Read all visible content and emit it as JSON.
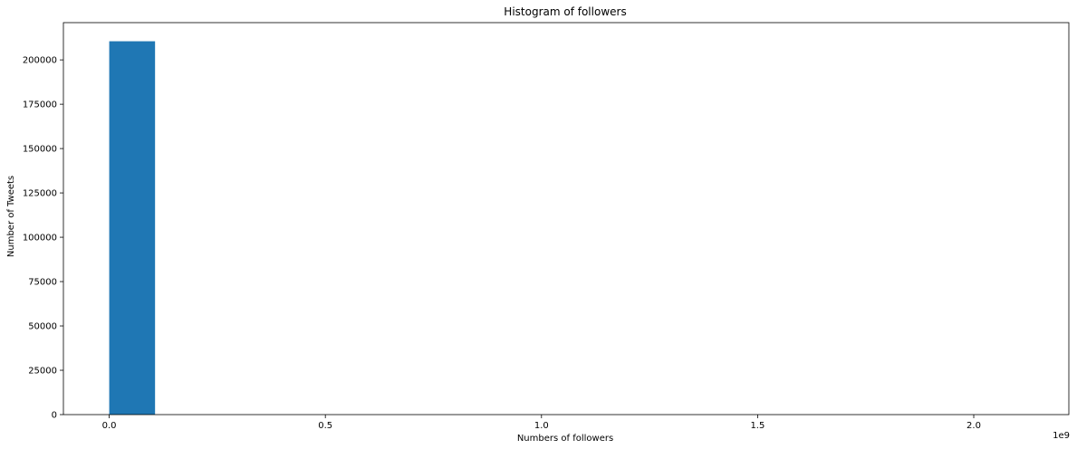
{
  "chart_data": {
    "type": "bar",
    "title": "Histogram of followers",
    "xlabel": "Numbers of followers",
    "ylabel": "Number of Tweets",
    "x_offset_label": "1e9",
    "bins": [
      {
        "x0": 0.0,
        "x1": 0.106,
        "count": 210500
      }
    ],
    "xlim": [
      -0.106,
      2.22
    ],
    "ylim": [
      0,
      221000
    ],
    "xticks": [
      0.0,
      0.5,
      1.0,
      1.5,
      2.0
    ],
    "xtick_labels": [
      "0.0",
      "0.5",
      "1.0",
      "1.5",
      "2.0"
    ],
    "yticks": [
      0,
      25000,
      50000,
      75000,
      100000,
      125000,
      150000,
      175000,
      200000
    ],
    "ytick_labels": [
      "0",
      "25000",
      "50000",
      "75000",
      "100000",
      "125000",
      "150000",
      "175000",
      "200000"
    ],
    "bar_color": "#1f77b4",
    "grid": false
  }
}
